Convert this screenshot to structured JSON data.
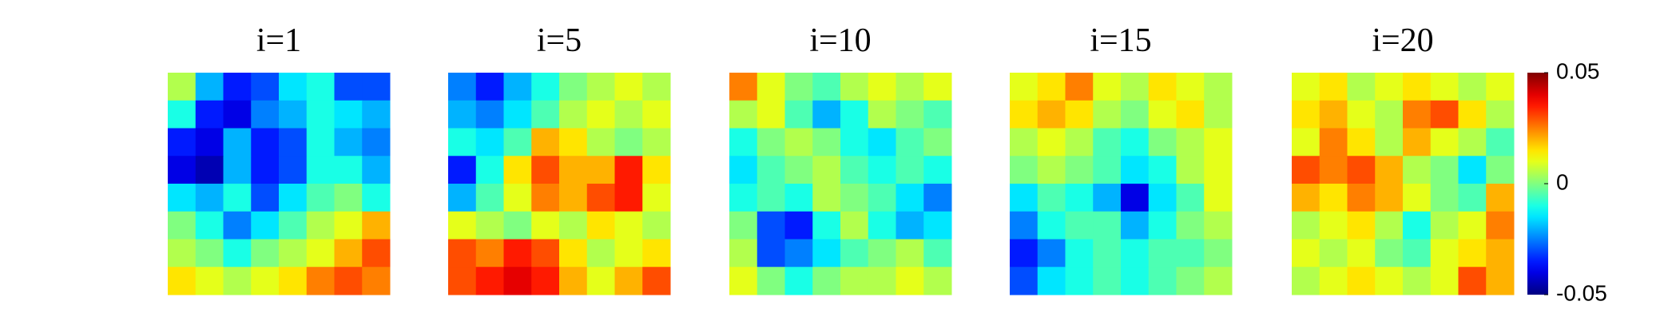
{
  "chart_data": {
    "type": "heatmap",
    "colormap": "jet",
    "panels": [
      {
        "title": "i=1",
        "values": [
          [
            0.005,
            -0.02,
            -0.035,
            -0.03,
            -0.015,
            -0.01,
            -0.03,
            -0.03
          ],
          [
            -0.01,
            -0.035,
            -0.04,
            -0.025,
            -0.02,
            -0.01,
            -0.015,
            -0.02
          ],
          [
            -0.035,
            -0.04,
            -0.02,
            -0.035,
            -0.03,
            -0.01,
            -0.02,
            -0.025
          ],
          [
            -0.04,
            -0.045,
            -0.02,
            -0.035,
            -0.03,
            -0.01,
            -0.01,
            -0.02
          ],
          [
            -0.015,
            -0.02,
            -0.01,
            -0.03,
            -0.015,
            -0.005,
            0,
            -0.01
          ],
          [
            0,
            -0.01,
            -0.025,
            -0.015,
            -0.005,
            0.005,
            0.01,
            0.02
          ],
          [
            0.005,
            0,
            -0.01,
            0,
            0.005,
            0.01,
            0.02,
            0.03
          ],
          [
            0.015,
            0.01,
            0.005,
            0.01,
            0.015,
            0.025,
            0.03,
            0.025
          ]
        ]
      },
      {
        "title": "i=5",
        "values": [
          [
            -0.025,
            -0.035,
            -0.02,
            -0.01,
            0,
            0.005,
            0.01,
            0.005
          ],
          [
            -0.02,
            -0.025,
            -0.015,
            -0.005,
            0.005,
            0.01,
            0.005,
            0.01
          ],
          [
            -0.01,
            -0.015,
            -0.005,
            0.02,
            0.015,
            0.005,
            0,
            0.005
          ],
          [
            -0.035,
            -0.01,
            0.015,
            0.03,
            0.02,
            0.02,
            0.035,
            0.015
          ],
          [
            -0.02,
            -0.005,
            0.01,
            0.025,
            0.02,
            0.03,
            0.035,
            0.01
          ],
          [
            0.01,
            0.005,
            0,
            0.01,
            0.005,
            0.015,
            0.01,
            0.005
          ],
          [
            0.03,
            0.025,
            0.035,
            0.03,
            0.015,
            0.005,
            0.01,
            0.015
          ],
          [
            0.03,
            0.035,
            0.04,
            0.035,
            0.02,
            0.01,
            0.02,
            0.03
          ]
        ]
      },
      {
        "title": "i=10",
        "values": [
          [
            0.025,
            0.01,
            0,
            -0.005,
            0.005,
            0.01,
            0.005,
            0.01
          ],
          [
            0.005,
            0.01,
            -0.005,
            -0.02,
            -0.01,
            0.005,
            0,
            -0.005
          ],
          [
            -0.01,
            0,
            0.005,
            0,
            -0.01,
            -0.015,
            -0.005,
            0
          ],
          [
            -0.015,
            -0.005,
            0,
            0.005,
            -0.005,
            -0.01,
            -0.005,
            -0.01
          ],
          [
            -0.01,
            -0.005,
            -0.01,
            0.005,
            0,
            -0.005,
            -0.015,
            -0.025
          ],
          [
            0,
            -0.03,
            -0.035,
            -0.01,
            0.005,
            -0.01,
            -0.02,
            -0.015
          ],
          [
            0.005,
            -0.03,
            -0.025,
            -0.015,
            -0.005,
            0,
            0.005,
            -0.005
          ],
          [
            0.01,
            0,
            -0.01,
            0,
            0.005,
            0.005,
            0.01,
            0.005
          ]
        ]
      },
      {
        "title": "i=15",
        "values": [
          [
            0.01,
            0.015,
            0.025,
            0.01,
            0.005,
            0.015,
            0.01,
            0.005
          ],
          [
            0.015,
            0.02,
            0.015,
            0.005,
            0,
            0.01,
            0.015,
            0.005
          ],
          [
            0.005,
            0.01,
            0.005,
            -0.005,
            -0.01,
            0,
            0.005,
            0.01
          ],
          [
            0,
            0.005,
            0,
            -0.005,
            -0.015,
            -0.01,
            0.005,
            0.01
          ],
          [
            -0.015,
            -0.005,
            -0.01,
            -0.02,
            -0.04,
            -0.015,
            -0.005,
            0.01
          ],
          [
            -0.025,
            -0.01,
            -0.005,
            -0.005,
            -0.02,
            -0.01,
            0,
            0.005
          ],
          [
            -0.035,
            -0.025,
            -0.01,
            -0.005,
            -0.01,
            -0.005,
            -0.005,
            0
          ],
          [
            -0.03,
            -0.015,
            -0.01,
            -0.005,
            -0.01,
            -0.005,
            0,
            0.005
          ]
        ]
      },
      {
        "title": "i=20",
        "values": [
          [
            0.01,
            0.015,
            0.005,
            0.01,
            0.015,
            0.01,
            0.005,
            0.01
          ],
          [
            0.015,
            0.02,
            0.01,
            0.005,
            0.025,
            0.03,
            0.015,
            0.005
          ],
          [
            0.01,
            0.025,
            0.015,
            0.005,
            0.02,
            0.01,
            0.005,
            -0.005
          ],
          [
            0.03,
            0.025,
            0.03,
            0.02,
            0.005,
            0,
            -0.015,
            0
          ],
          [
            0.02,
            0.015,
            0.025,
            0.02,
            0.01,
            0,
            -0.005,
            0.02
          ],
          [
            0.005,
            0.01,
            0.015,
            0.005,
            -0.01,
            0.005,
            0.01,
            0.025
          ],
          [
            0.01,
            0.005,
            0.01,
            0,
            -0.005,
            0.01,
            0.015,
            0.02
          ],
          [
            0.005,
            0.01,
            0.015,
            0.01,
            0.005,
            0.01,
            0.03,
            0.02
          ]
        ]
      }
    ],
    "clim": [
      -0.05,
      0.05
    ],
    "cticks": [
      -0.05,
      0,
      0.05
    ]
  }
}
